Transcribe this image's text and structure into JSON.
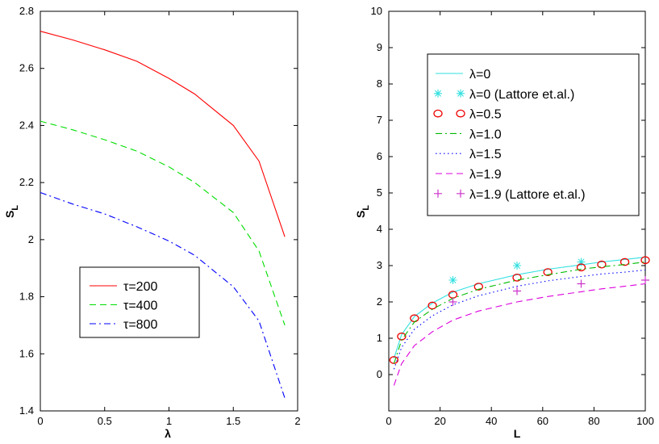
{
  "chart_data": [
    {
      "type": "line",
      "xlabel": "λ",
      "ylabel": "S",
      "ylabel_sub": "L",
      "xlim": [
        0,
        2
      ],
      "ylim": [
        1.4,
        2.8
      ],
      "xticks": [
        "0",
        "0.5",
        "1",
        "1.5",
        "2"
      ],
      "yticks": [
        "1.4",
        "1.6",
        "1.8",
        "2",
        "2.2",
        "2.4",
        "2.6",
        "2.8"
      ],
      "legend_position": "lower-center",
      "series": [
        {
          "name": "τ=200",
          "color": "#ff0000",
          "dash": "solid",
          "x": [
            0,
            0.25,
            0.5,
            0.75,
            1.0,
            1.2,
            1.5,
            1.7,
            1.9
          ],
          "y": [
            2.73,
            2.7,
            2.665,
            2.625,
            2.565,
            2.51,
            2.4,
            2.275,
            2.01
          ]
        },
        {
          "name": "τ=400",
          "color": "#00dd00",
          "dash": "dashed",
          "x": [
            0,
            0.25,
            0.5,
            0.75,
            1.0,
            1.2,
            1.5,
            1.7,
            1.9
          ],
          "y": [
            2.415,
            2.385,
            2.35,
            2.31,
            2.255,
            2.2,
            2.095,
            1.96,
            1.7
          ]
        },
        {
          "name": "τ=800",
          "color": "#0000ff",
          "dash": "dashdot",
          "x": [
            0,
            0.25,
            0.5,
            0.75,
            1.0,
            1.2,
            1.5,
            1.7,
            1.9
          ],
          "y": [
            2.165,
            2.125,
            2.09,
            2.045,
            1.995,
            1.945,
            1.835,
            1.715,
            1.445
          ]
        }
      ]
    },
    {
      "type": "line",
      "xlabel": "L",
      "ylabel": "S",
      "ylabel_sub": "L",
      "xlim": [
        0,
        100
      ],
      "ylim": [
        -1,
        10
      ],
      "xticks": [
        "0",
        "20",
        "40",
        "60",
        "80",
        "100"
      ],
      "yticks": [
        "0",
        "1",
        "2",
        "3",
        "4",
        "5",
        "6",
        "7",
        "8",
        "9",
        "10"
      ],
      "legend_position": "top-right",
      "series": [
        {
          "name": "λ=0",
          "color": "#33e0e0",
          "style": "solid",
          "x": [
            2,
            5,
            10,
            17,
            25,
            35,
            50,
            62,
            75,
            83,
            92,
            100
          ],
          "y": [
            0.45,
            1.1,
            1.6,
            1.97,
            2.27,
            2.5,
            2.75,
            2.9,
            3.02,
            3.1,
            3.17,
            3.23
          ]
        },
        {
          "name": "λ=0 (Lattore et.al.)",
          "color": "#33e0e0",
          "style": "asterisk",
          "x": [
            25,
            50,
            75
          ],
          "y": [
            2.6,
            3.0,
            3.1
          ]
        },
        {
          "name": "λ=0.5",
          "color": "#ee0000",
          "style": "circle",
          "x": [
            2,
            5,
            10,
            17,
            25,
            35,
            50,
            62,
            75,
            83,
            92,
            100
          ],
          "y": [
            0.4,
            1.05,
            1.55,
            1.9,
            2.2,
            2.42,
            2.67,
            2.82,
            2.95,
            3.03,
            3.1,
            3.15
          ]
        },
        {
          "name": "λ=1.0",
          "color": "#00bb00",
          "style": "dashdot",
          "x": [
            2,
            5,
            10,
            17,
            25,
            35,
            50,
            62,
            75,
            83,
            92,
            100
          ],
          "y": [
            0.3,
            0.95,
            1.45,
            1.8,
            2.1,
            2.35,
            2.6,
            2.75,
            2.9,
            2.97,
            3.03,
            3.1
          ]
        },
        {
          "name": "λ=1.5",
          "color": "#0000ff",
          "style": "dotted",
          "x": [
            2,
            5,
            10,
            17,
            25,
            35,
            50,
            62,
            75,
            83,
            92,
            100
          ],
          "y": [
            0.15,
            0.75,
            1.25,
            1.62,
            1.92,
            2.17,
            2.43,
            2.58,
            2.7,
            2.77,
            2.82,
            2.88
          ]
        },
        {
          "name": "λ=1.9",
          "color": "#dd00dd",
          "style": "dashed",
          "x": [
            2,
            5,
            10,
            17,
            25,
            35,
            50,
            62,
            75,
            83,
            92,
            100
          ],
          "y": [
            -0.3,
            0.3,
            0.8,
            1.18,
            1.5,
            1.75,
            2.0,
            2.15,
            2.28,
            2.36,
            2.43,
            2.5
          ]
        },
        {
          "name": "λ=1.9 (Lattore et.al.)",
          "color": "#cc33cc",
          "style": "plus",
          "x": [
            25,
            50,
            75,
            100
          ],
          "y": [
            2.0,
            2.3,
            2.5,
            2.6
          ]
        }
      ]
    }
  ]
}
